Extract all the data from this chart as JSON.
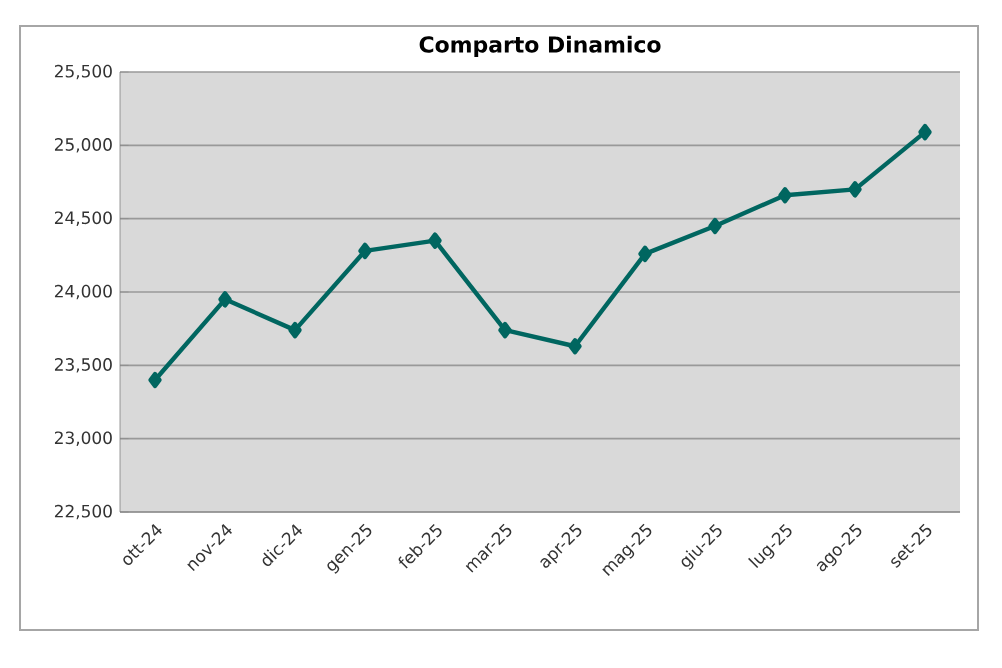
{
  "chart_data": {
    "type": "line",
    "title": "Comparto Dinamico",
    "categories": [
      "ott-24",
      "nov-24",
      "dic-24",
      "gen-25",
      "feb-25",
      "mar-25",
      "apr-25",
      "mag-25",
      "giu-25",
      "lug-25",
      "ago-25",
      "set-25"
    ],
    "series": [
      {
        "color": "#006660",
        "values": [
          23400,
          23950,
          23740,
          24280,
          24350,
          23740,
          23630,
          24260,
          24450,
          24660,
          24700,
          25090
        ]
      }
    ],
    "ylim": [
      22500,
      25500
    ],
    "yticks": [
      {
        "value": 22500,
        "label": "22,500"
      },
      {
        "value": 23000,
        "label": "23,000"
      },
      {
        "value": 23500,
        "label": "23,500"
      },
      {
        "value": 24000,
        "label": "24,000"
      },
      {
        "value": 24500,
        "label": "24,500"
      },
      {
        "value": 25000,
        "label": "25,000"
      },
      {
        "value": 25500,
        "label": "25,500"
      }
    ],
    "grid": "y",
    "legend": false,
    "marker": "diamond",
    "line_style": "solid"
  }
}
